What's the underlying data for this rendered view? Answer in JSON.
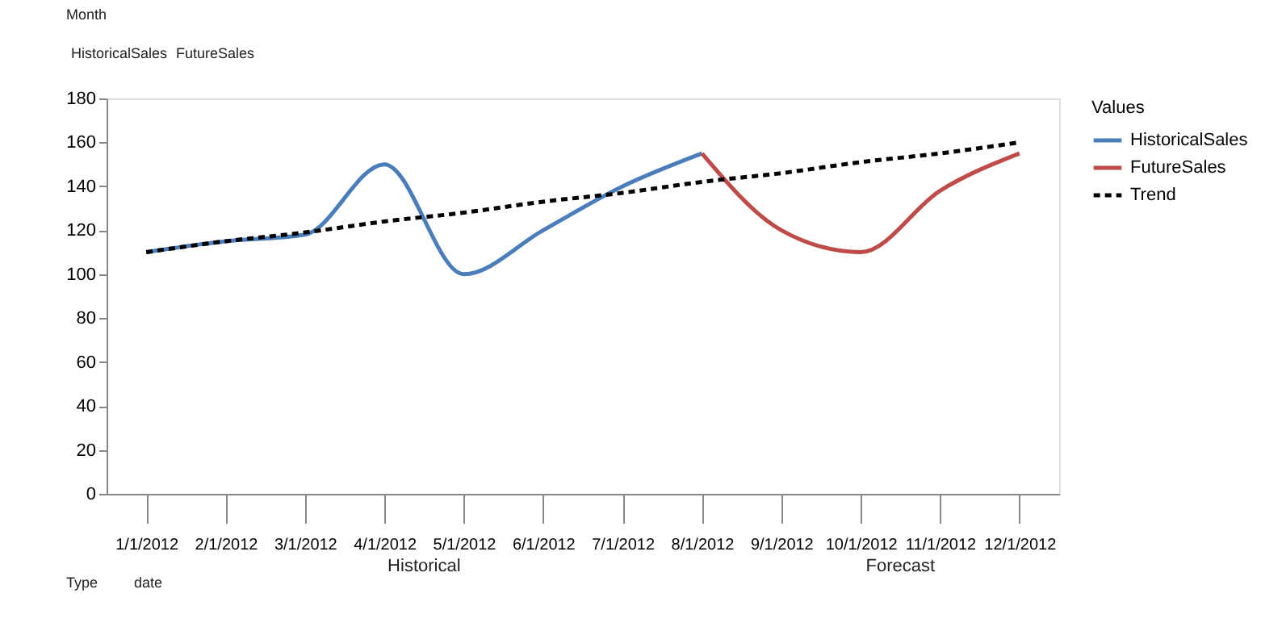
{
  "chart_data": {
    "type": "line",
    "legend_title": "Values",
    "legend": "right",
    "grid": false,
    "line_style": "solid",
    "marker": "none",
    "categories": [
      "1/1/2012",
      "2/1/2012",
      "3/1/2012",
      "4/1/2012",
      "5/1/2012",
      "6/1/2012",
      "7/1/2012",
      "8/1/2012",
      "9/1/2012",
      "10/1/2012",
      "11/1/2012",
      "12/1/2012"
    ],
    "ylim": [
      0,
      180
    ],
    "yticks": [
      0,
      20,
      40,
      60,
      80,
      100,
      120,
      140,
      160,
      180
    ],
    "series": [
      {
        "name": "HistoricalSales",
        "color": "#4a7ebb",
        "values": [
          110,
          115,
          118,
          150,
          100,
          120,
          140,
          155,
          null,
          null,
          null,
          null
        ]
      },
      {
        "name": "FutureSales",
        "color": "#be4b48",
        "values": [
          null,
          null,
          null,
          null,
          null,
          null,
          null,
          155,
          120,
          110,
          138,
          155
        ]
      },
      {
        "name": "Trend",
        "color": "#000000",
        "line_style": "dashed",
        "values": [
          110,
          115,
          119,
          124,
          128,
          133,
          137,
          142,
          146,
          151,
          155,
          160
        ]
      }
    ],
    "annotations": [
      "Month",
      "HistoricalSales",
      "FutureSales",
      "Historical",
      "Forecast",
      "Type",
      "date"
    ]
  }
}
